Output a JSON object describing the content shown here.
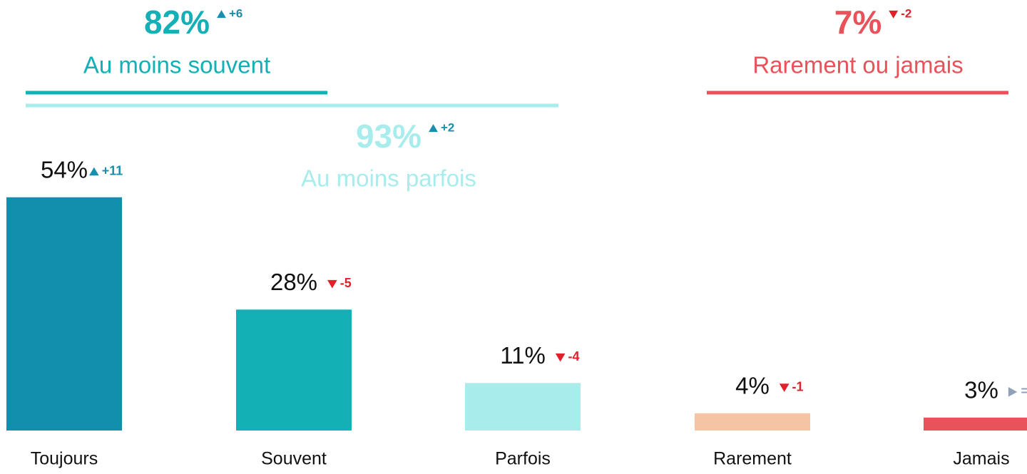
{
  "chart_data": {
    "type": "bar",
    "categories": [
      "Toujours",
      "Souvent",
      "Parfois",
      "Rarement",
      "Jamais"
    ],
    "values": [
      54,
      28,
      11,
      4,
      3
    ],
    "value_labels": [
      "54%",
      "28%",
      "11%",
      "4%",
      "3%"
    ],
    "change_labels": [
      "+11",
      "-5",
      "-4",
      "-1",
      "="
    ],
    "colors": [
      "#138fae",
      "#13b0b5",
      "#a8ecec",
      "#f5c4a4",
      "#e8525a"
    ],
    "groups": [
      {
        "name": "Au moins souvent",
        "value": 82,
        "value_label": "82%",
        "change_label": "+6",
        "color": "#13b0b5"
      },
      {
        "name": "Au moins parfois",
        "value": 93,
        "value_label": "93%",
        "change_label": "+2",
        "color": "#a8ecec"
      },
      {
        "name": "Rarement ou jamais",
        "value": 7,
        "value_label": "7%",
        "change_label": "-2",
        "color": "#e8525a"
      }
    ]
  }
}
